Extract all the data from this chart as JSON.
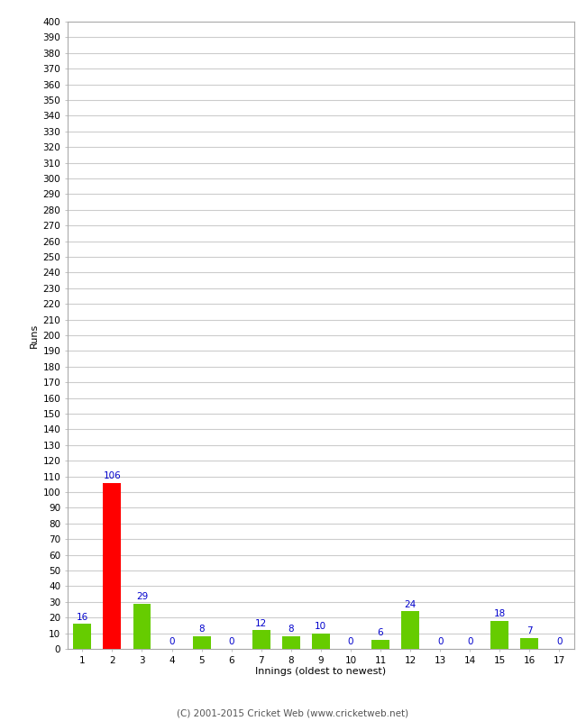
{
  "innings": [
    1,
    2,
    3,
    4,
    5,
    6,
    7,
    8,
    9,
    10,
    11,
    12,
    13,
    14,
    15,
    16,
    17
  ],
  "runs": [
    16,
    106,
    29,
    0,
    8,
    0,
    12,
    8,
    10,
    0,
    6,
    24,
    0,
    0,
    18,
    7,
    0
  ],
  "bar_colors": [
    "#66cc00",
    "#ff0000",
    "#66cc00",
    "#66cc00",
    "#66cc00",
    "#66cc00",
    "#66cc00",
    "#66cc00",
    "#66cc00",
    "#66cc00",
    "#66cc00",
    "#66cc00",
    "#66cc00",
    "#66cc00",
    "#66cc00",
    "#66cc00",
    "#66cc00"
  ],
  "ylabel": "Runs",
  "xlabel": "Innings (oldest to newest)",
  "ylim": [
    0,
    400
  ],
  "yticks": [
    0,
    10,
    20,
    30,
    40,
    50,
    60,
    70,
    80,
    90,
    100,
    110,
    120,
    130,
    140,
    150,
    160,
    170,
    180,
    190,
    200,
    210,
    220,
    230,
    240,
    250,
    260,
    270,
    280,
    290,
    300,
    310,
    320,
    330,
    340,
    350,
    360,
    370,
    380,
    390,
    400
  ],
  "footer": "(C) 2001-2015 Cricket Web (www.cricketweb.net)",
  "background_color": "#ffffff",
  "grid_color": "#cccccc",
  "label_color": "#0000cc",
  "bar_width": 0.6,
  "tick_fontsize": 7.5,
  "xlabel_fontsize": 8,
  "ylabel_fontsize": 8
}
